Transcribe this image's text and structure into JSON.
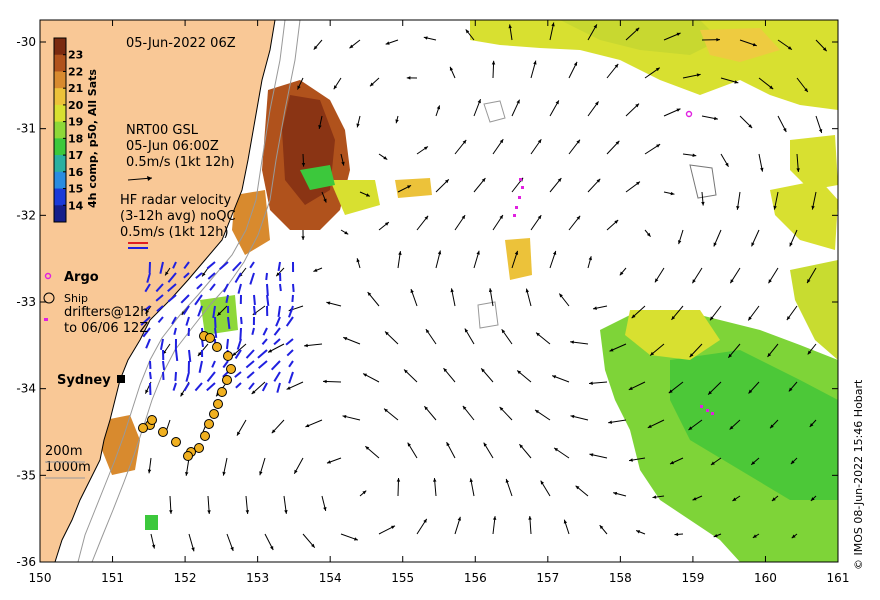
{
  "title": "05-Jun-2022 06Z",
  "colorbar": {
    "label": "4h comp, p50, All Sats",
    "ticks": [
      "23",
      "22",
      "21",
      "20",
      "19",
      "18",
      "17",
      "16",
      "15",
      "14"
    ],
    "colors": [
      "#7a2a10",
      "#b0521c",
      "#d88a2e",
      "#ecc23a",
      "#d8e030",
      "#8ed838",
      "#3cc83c",
      "#2ab0a0",
      "#2a8ce0",
      "#1a3ad8",
      "#151f8a"
    ]
  },
  "gsl_legend": {
    "line1": "NRT00 GSL",
    "line2": "05-Jun 06:00Z",
    "line3": "0.5m/s (1kt 12h)"
  },
  "hf_legend": {
    "line1": "HF radar velocity",
    "line2": "(3-12h avg) noQC",
    "line3": "0.5m/s (1kt 12h)"
  },
  "markers": {
    "argo": "Argo",
    "ship": "Ship",
    "drifters1": "drifters@12h",
    "drifters2": "to 06/06 12Z"
  },
  "place": {
    "sydney": "Sydney"
  },
  "depth": {
    "d200": "200m",
    "d1000": "1000m"
  },
  "x_ticks": [
    "150",
    "151",
    "152",
    "153",
    "154",
    "155",
    "156",
    "157",
    "158",
    "159",
    "160",
    "161"
  ],
  "y_ticks": [
    "-30",
    "-31",
    "-32",
    "-33",
    "-34",
    "-35",
    "-36"
  ],
  "credit": "© IMOS 08-Jun-2022 15:46 Hobart",
  "colors": {
    "land": "#f9c896",
    "argo": "#e020e0",
    "ship": "#000000",
    "hf_red": "#e02020",
    "hf_blue": "#2020e0",
    "drifter": "#f0b020"
  }
}
